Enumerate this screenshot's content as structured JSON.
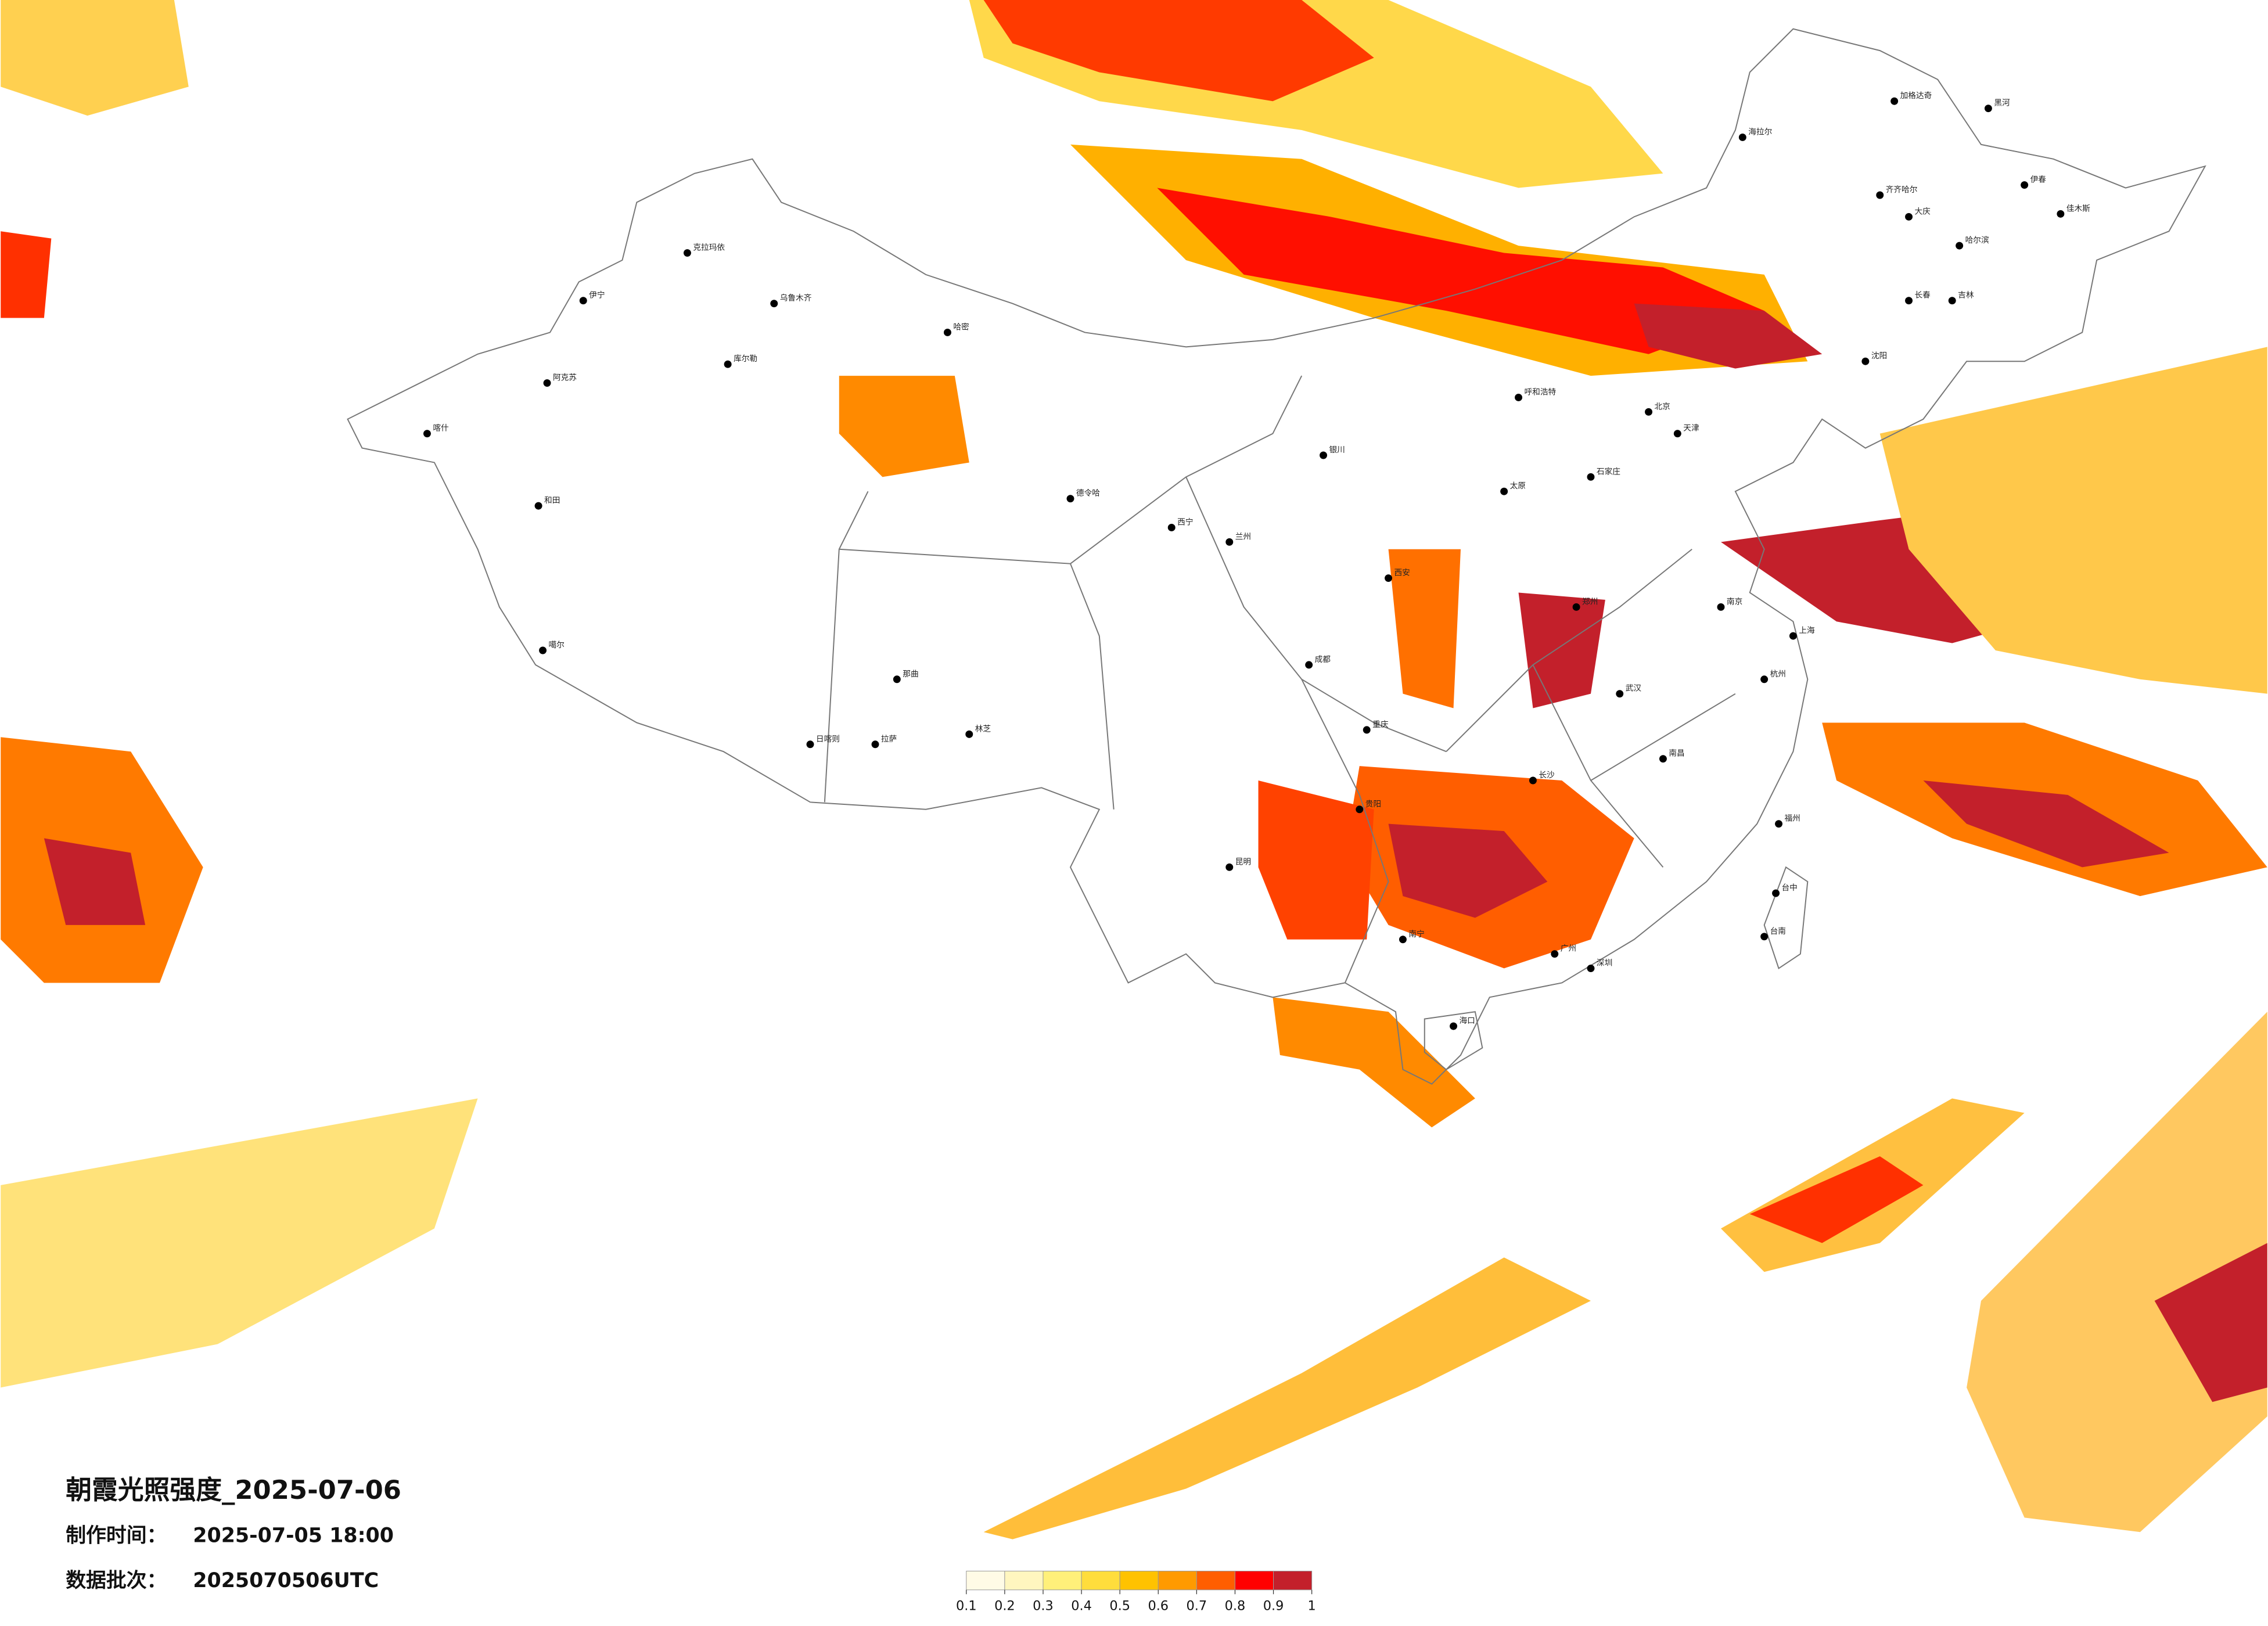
{
  "title": "朝霞光照强度_2025-07-06",
  "production_time": {
    "label": "制作时间：",
    "value": "2025-07-05 18:00"
  },
  "batch": {
    "label": "数据批次：",
    "value": "2025070506UTC"
  },
  "colorbar": {
    "ticks": [
      0.1,
      0.2,
      0.3,
      0.4,
      0.5,
      0.6,
      0.7,
      0.8,
      0.9,
      1
    ],
    "colors": [
      "#fffbe6",
      "#fff6bf",
      "#fff07a",
      "#ffdd3c",
      "#ffc200",
      "#ff9a00",
      "#ff5e00",
      "#ff0000",
      "#c3202b"
    ]
  },
  "cities": [
    "加格达奇",
    "黑河",
    "海拉尔",
    "齐齐哈尔",
    "伊春",
    "佳木斯",
    "大庆",
    "哈尔滨",
    "长春",
    "吉林",
    "沈阳",
    "北京",
    "天津",
    "石家庄",
    "太原",
    "郑州",
    "武汉",
    "南京",
    "上海",
    "杭州",
    "福州",
    "台中",
    "台南",
    "广州",
    "深圳",
    "海口",
    "南宁",
    "昆明",
    "贵阳",
    "成都",
    "重庆",
    "西安",
    "兰州",
    "西宁",
    "银川",
    "呼和浩特",
    "拉萨",
    "日喀则",
    "林芝",
    "那曲",
    "乌鲁木齐",
    "克拉玛依",
    "喀什",
    "和田",
    "哈密",
    "库尔勒",
    "阿克苏",
    "伊宁",
    "噶尔",
    "德令哈",
    "长沙",
    "南昌"
  ]
}
